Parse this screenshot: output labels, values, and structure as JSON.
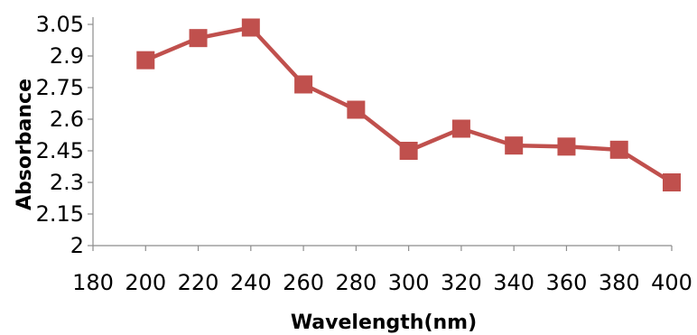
{
  "chart_data": {
    "type": "line",
    "title": "",
    "xlabel": "Wavelength(nm)",
    "ylabel": "Absorbance",
    "xlim": [
      180,
      400
    ],
    "ylim": [
      2,
      3.05
    ],
    "xticks": [
      180,
      200,
      220,
      240,
      260,
      280,
      300,
      320,
      340,
      360,
      380,
      400
    ],
    "yticks": [
      {
        "value": 2,
        "label": "2"
      },
      {
        "value": 2.15,
        "label": "2.15"
      },
      {
        "value": 2.3,
        "label": "2.3"
      },
      {
        "value": 2.45,
        "label": "2.45"
      },
      {
        "value": 2.6,
        "label": "2.6"
      },
      {
        "value": 2.75,
        "label": "2.75"
      },
      {
        "value": 2.9,
        "label": "2.9"
      },
      {
        "value": 3.05,
        "label": "3.05"
      }
    ],
    "grid": false,
    "legend": "none",
    "series": [
      {
        "color": "#c0504d",
        "marker": "square",
        "x": [
          200,
          220,
          240,
          260,
          280,
          300,
          320,
          340,
          360,
          380,
          400
        ],
        "y": [
          2.88,
          2.985,
          3.035,
          2.765,
          2.645,
          2.45,
          2.555,
          2.475,
          2.47,
          2.455,
          2.3
        ]
      }
    ]
  }
}
